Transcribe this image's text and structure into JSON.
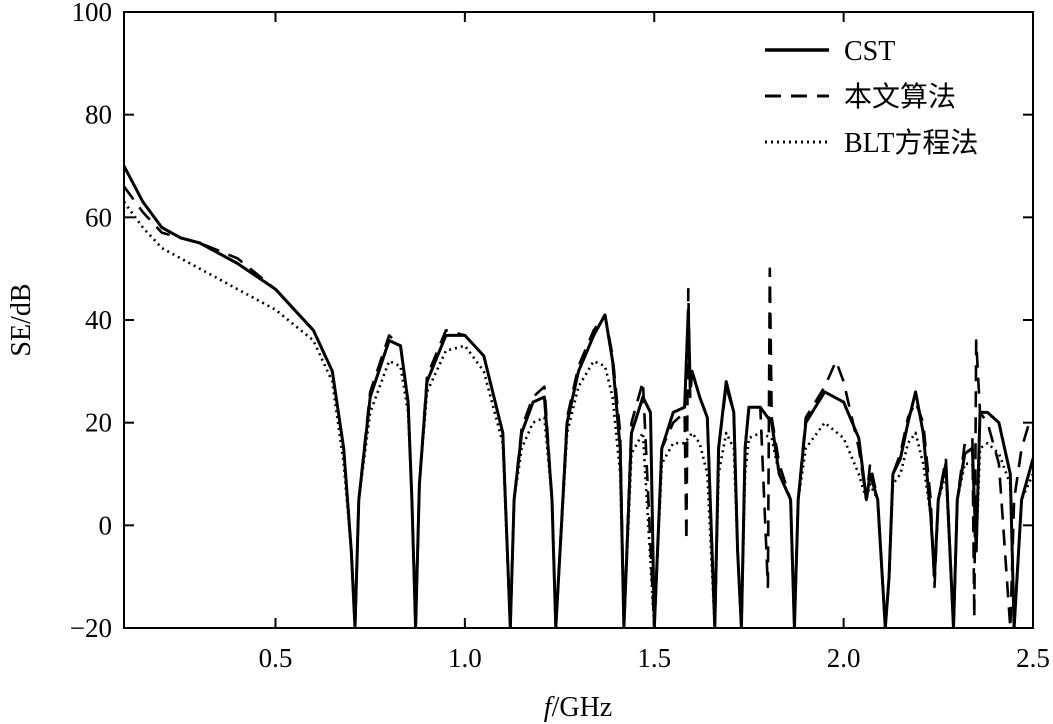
{
  "chart_data": {
    "type": "line",
    "xlabel_italic": "f",
    "xlabel_rest": "/GHz",
    "ylabel": "SE/dB",
    "xlim": [
      0.1,
      2.5
    ],
    "ylim": [
      -20,
      100
    ],
    "xticks": [
      0.5,
      1.0,
      1.5,
      2.0,
      2.5
    ],
    "xtick_labels": [
      "0.5",
      "1.0",
      "1.5",
      "2.0",
      "2.5"
    ],
    "yticks": [
      -20,
      0,
      20,
      40,
      60,
      80,
      100
    ],
    "ytick_labels": [
      "−20",
      "0",
      "20",
      "40",
      "60",
      "80",
      "100"
    ],
    "grid": false,
    "legend_position": "top-right",
    "series": [
      {
        "name": "CST",
        "style": "solid",
        "x": [
          0.1,
          0.15,
          0.2,
          0.25,
          0.3,
          0.4,
          0.5,
          0.6,
          0.65,
          0.68,
          0.7,
          0.71,
          0.72,
          0.75,
          0.8,
          0.83,
          0.85,
          0.86,
          0.87,
          0.88,
          0.9,
          0.95,
          1.0,
          1.05,
          1.1,
          1.12,
          1.13,
          1.15,
          1.18,
          1.21,
          1.23,
          1.24,
          1.27,
          1.3,
          1.34,
          1.37,
          1.39,
          1.41,
          1.42,
          1.44,
          1.47,
          1.49,
          1.5,
          1.52,
          1.55,
          1.58,
          1.59,
          1.595,
          1.6,
          1.62,
          1.64,
          1.66,
          1.67,
          1.69,
          1.71,
          1.72,
          1.73,
          1.74,
          1.75,
          1.78,
          1.81,
          1.83,
          1.86,
          1.87,
          1.88,
          1.9,
          1.95,
          2.0,
          2.04,
          2.06,
          2.07,
          2.09,
          2.11,
          2.12,
          2.13,
          2.15,
          2.17,
          2.19,
          2.21,
          2.23,
          2.24,
          2.25,
          2.27,
          2.29,
          2.3,
          2.32,
          2.34,
          2.35,
          2.36,
          2.38,
          2.41,
          2.44,
          2.45,
          2.47,
          2.5
        ],
        "y": [
          70,
          63,
          58,
          56,
          55,
          51,
          46,
          38,
          30,
          15,
          -5,
          -20,
          5,
          25,
          36,
          35,
          24,
          5,
          -20,
          8,
          28,
          37,
          37,
          33,
          18,
          -20,
          5,
          18,
          24,
          25,
          5,
          -20,
          20,
          30,
          37,
          41,
          32,
          15,
          -20,
          18,
          25,
          22,
          -20,
          15,
          22,
          23,
          42,
          27,
          30,
          25,
          21,
          -20,
          15,
          28,
          22,
          -5,
          -20,
          15,
          23,
          23,
          20,
          10,
          5,
          -20,
          5,
          20,
          26,
          24,
          17,
          5,
          10,
          5,
          -20,
          -10,
          10,
          13,
          20,
          26,
          18,
          2,
          -10,
          5,
          12,
          -20,
          5,
          14,
          15,
          -5,
          22,
          22,
          20,
          10,
          -20,
          5,
          13
        ]
      },
      {
        "name": "本文算法",
        "style": "dashed",
        "x": [
          0.1,
          0.15,
          0.2,
          0.25,
          0.3,
          0.4,
          0.5,
          0.6,
          0.65,
          0.68,
          0.7,
          0.71,
          0.72,
          0.75,
          0.8,
          0.83,
          0.85,
          0.86,
          0.87,
          0.88,
          0.9,
          0.95,
          1.0,
          1.05,
          1.1,
          1.12,
          1.13,
          1.15,
          1.18,
          1.21,
          1.23,
          1.24,
          1.27,
          1.3,
          1.34,
          1.37,
          1.39,
          1.41,
          1.42,
          1.44,
          1.47,
          1.5,
          1.52,
          1.55,
          1.58,
          1.585,
          1.59,
          1.595,
          1.6,
          1.62,
          1.64,
          1.66,
          1.67,
          1.69,
          1.71,
          1.72,
          1.73,
          1.74,
          1.75,
          1.78,
          1.8,
          1.805,
          1.81,
          1.83,
          1.86,
          1.87,
          1.88,
          1.9,
          1.95,
          1.98,
          2.0,
          2.04,
          2.06,
          2.07,
          2.09,
          2.11,
          2.12,
          2.13,
          2.15,
          2.17,
          2.19,
          2.21,
          2.23,
          2.24,
          2.25,
          2.27,
          2.29,
          2.3,
          2.32,
          2.34,
          2.345,
          2.35,
          2.36,
          2.38,
          2.41,
          2.44,
          2.45,
          2.47,
          2.49,
          2.5
        ],
        "y": [
          66,
          61,
          57,
          56,
          55,
          52,
          46,
          38,
          30,
          15,
          -5,
          -20,
          5,
          26,
          37,
          35,
          24,
          5,
          -20,
          8,
          29,
          38,
          37,
          33,
          18,
          -20,
          5,
          19,
          25,
          27,
          5,
          -20,
          21,
          31,
          38,
          41,
          33,
          18,
          -20,
          20,
          28,
          -20,
          15,
          20,
          22,
          -3,
          46,
          25,
          30,
          25,
          21,
          -20,
          15,
          27,
          22,
          -5,
          -20,
          15,
          23,
          23,
          -12,
          50,
          21,
          12,
          5,
          -20,
          5,
          21,
          27,
          32,
          28,
          15,
          5,
          12,
          5,
          -20,
          -10,
          10,
          14,
          21,
          24,
          20,
          5,
          -12,
          5,
          13,
          -20,
          5,
          16,
          17,
          -18,
          36,
          22,
          20,
          12,
          -20,
          5,
          15,
          20,
          21
        ]
      },
      {
        "name": "BLT方程法",
        "style": "dotted",
        "x": [
          0.1,
          0.15,
          0.2,
          0.25,
          0.3,
          0.4,
          0.5,
          0.6,
          0.65,
          0.68,
          0.7,
          0.71,
          0.72,
          0.75,
          0.8,
          0.83,
          0.85,
          0.86,
          0.87,
          0.88,
          0.9,
          0.95,
          1.0,
          1.05,
          1.1,
          1.12,
          1.13,
          1.15,
          1.18,
          1.21,
          1.23,
          1.24,
          1.27,
          1.3,
          1.34,
          1.37,
          1.39,
          1.41,
          1.42,
          1.44,
          1.47,
          1.5,
          1.52,
          1.55,
          1.58,
          1.6,
          1.62,
          1.64,
          1.66,
          1.67,
          1.69,
          1.71,
          1.72,
          1.73,
          1.74,
          1.75,
          1.78,
          1.81,
          1.83,
          1.86,
          1.87,
          1.88,
          1.9,
          1.95,
          2.0,
          2.04,
          2.06,
          2.07,
          2.09,
          2.11,
          2.12,
          2.13,
          2.15,
          2.17,
          2.19,
          2.21,
          2.23,
          2.24,
          2.25,
          2.27,
          2.29,
          2.3,
          2.32,
          2.34,
          2.35,
          2.36,
          2.38,
          2.41,
          2.44,
          2.45,
          2.47,
          2.5
        ],
        "y": [
          63,
          58,
          54,
          52,
          50,
          46,
          42,
          36,
          28,
          12,
          -5,
          -20,
          5,
          22,
          32,
          31,
          22,
          5,
          -20,
          8,
          26,
          34,
          35,
          30,
          16,
          -20,
          5,
          15,
          20,
          21,
          5,
          -20,
          18,
          27,
          32,
          31,
          25,
          10,
          -20,
          14,
          18,
          -20,
          12,
          16,
          16,
          18,
          16,
          10,
          -20,
          10,
          18,
          15,
          -5,
          -20,
          10,
          17,
          18,
          17,
          10,
          5,
          -20,
          5,
          15,
          20,
          17,
          10,
          5,
          8,
          5,
          -20,
          -10,
          8,
          10,
          16,
          18,
          12,
          2,
          -10,
          5,
          10,
          -20,
          5,
          12,
          12,
          -5,
          15,
          16,
          14,
          8,
          -20,
          5,
          10
        ]
      }
    ]
  }
}
